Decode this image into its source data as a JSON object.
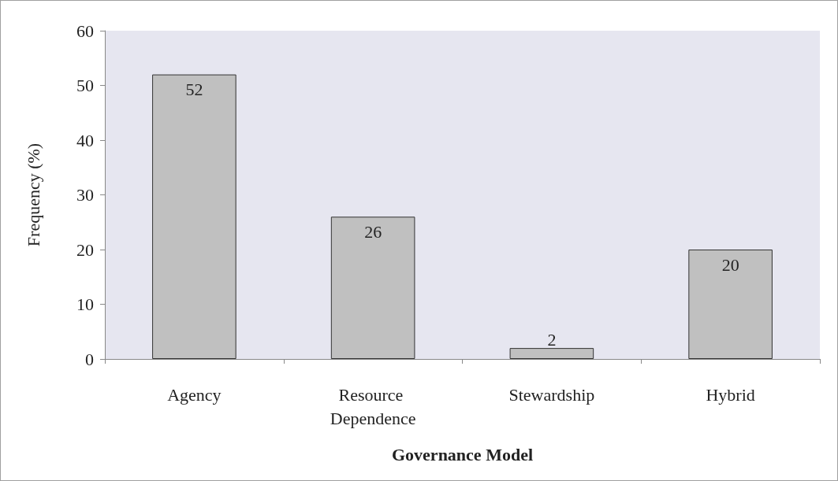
{
  "chart_data": {
    "type": "bar",
    "xlabel": "Governance Model",
    "ylabel": "Frequency (%)",
    "categories": [
      "Agency",
      "Resource Dependence",
      "Stewardship",
      "Hybrid"
    ],
    "values": [
      52,
      26,
      2,
      20
    ],
    "color": "#c0c0c0",
    "ylim": [
      0,
      60
    ],
    "yticks": [
      0,
      10,
      20,
      30,
      40,
      50,
      60
    ],
    "grid": false,
    "data_labels": true
  }
}
